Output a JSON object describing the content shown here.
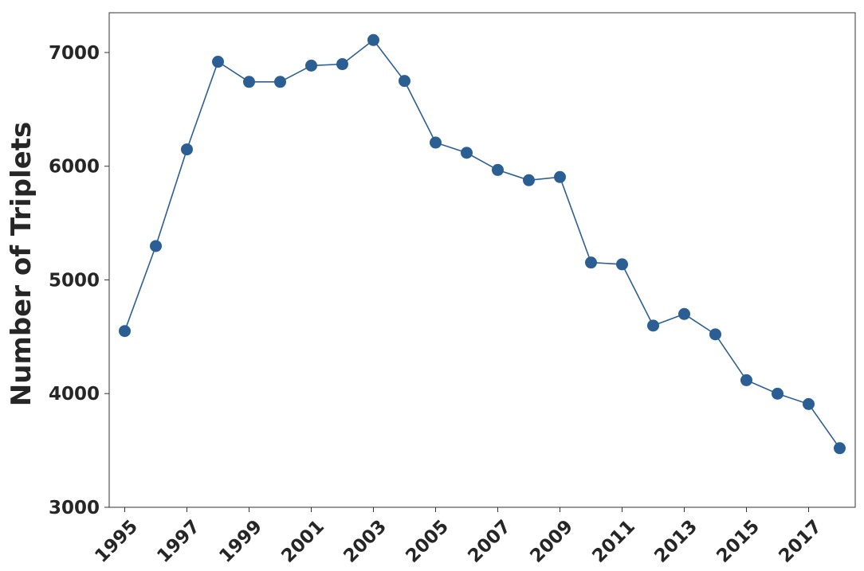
{
  "chart_data": {
    "type": "line",
    "title": "",
    "xlabel": "",
    "ylabel": "Number of Triplets",
    "x": [
      1995,
      1996,
      1997,
      1998,
      1999,
      2000,
      2001,
      2002,
      2003,
      2004,
      2005,
      2006,
      2007,
      2008,
      2009,
      2010,
      2011,
      2012,
      2013,
      2014,
      2015,
      2016,
      2017,
      2018
    ],
    "series": [
      {
        "values": [
          4550,
          5298,
          6148,
          6919,
          6742,
          6742,
          6885,
          6898,
          7110,
          6750,
          6208,
          6118,
          5967,
          5877,
          5905,
          5153,
          5137,
          4598,
          4700,
          4521,
          4118,
          3999,
          3908,
          3520
        ],
        "color": "#2b5f94"
      }
    ],
    "xticks": [
      "1995",
      "1997",
      "1999",
      "2001",
      "2003",
      "2005",
      "2007",
      "2009",
      "2011",
      "2013",
      "2015",
      "2017"
    ],
    "yticks": [
      "3000",
      "4000",
      "5000",
      "6000",
      "7000"
    ],
    "xlim": [
      1994.5,
      2018.5
    ],
    "ylim": [
      3000,
      7350
    ],
    "grid": false,
    "legend": "none"
  }
}
